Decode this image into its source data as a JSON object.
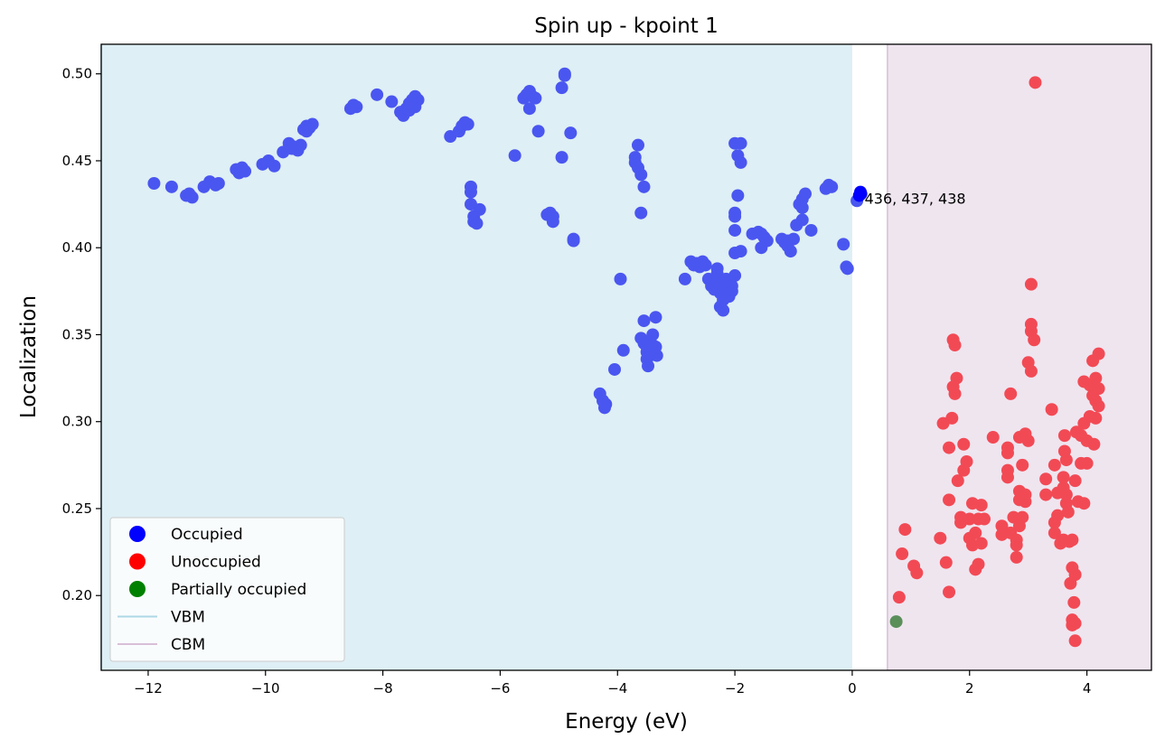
{
  "chart_data": {
    "type": "scatter",
    "title": "Spin up - kpoint 1",
    "xlabel": "Energy (eV)",
    "ylabel": "Localization",
    "xlim": [
      -12.8,
      5.1
    ],
    "ylim": [
      0.157,
      0.517
    ],
    "x_ticks": [
      -12,
      -10,
      -8,
      -6,
      -4,
      -2,
      0,
      2,
      4
    ],
    "x_tick_labels": [
      "−12",
      "−10",
      "−8",
      "−6",
      "−4",
      "−2",
      "0",
      "2",
      "4"
    ],
    "y_ticks": [
      0.2,
      0.25,
      0.3,
      0.35,
      0.4,
      0.45,
      0.5
    ],
    "y_tick_labels": [
      "0.20",
      "0.25",
      "0.30",
      "0.35",
      "0.40",
      "0.45",
      "0.50"
    ],
    "grid": false,
    "legend_position": "lower-left",
    "regions": [
      {
        "name": "VBM",
        "x0": -12.8,
        "x1": 0.0,
        "color": "#add8e6"
      },
      {
        "name": "CBM",
        "x0": 0.6,
        "x1": 5.1,
        "color": "#d8bfd8"
      }
    ],
    "legend": [
      {
        "label": "Occupied",
        "kind": "marker",
        "color": "#0000ff"
      },
      {
        "label": "Unoccupied",
        "kind": "marker",
        "color": "#ff0000"
      },
      {
        "label": "Partially occupied",
        "kind": "marker",
        "color": "#008000"
      },
      {
        "label": "VBM",
        "kind": "line",
        "color": "#add8e6"
      },
      {
        "label": "CBM",
        "kind": "line",
        "color": "#d8bfd8"
      }
    ],
    "annotation": {
      "text": "436, 437, 438",
      "x": 0.18,
      "y": 0.428
    },
    "series": [
      {
        "name": "Occupied",
        "color": "#4a56f0",
        "points": [
          [
            -11.9,
            0.437
          ],
          [
            -11.6,
            0.435
          ],
          [
            -11.35,
            0.43
          ],
          [
            -11.25,
            0.429
          ],
          [
            -11.3,
            0.431
          ],
          [
            -11.05,
            0.435
          ],
          [
            -10.95,
            0.438
          ],
          [
            -10.85,
            0.436
          ],
          [
            -10.8,
            0.437
          ],
          [
            -10.5,
            0.445
          ],
          [
            -10.45,
            0.443
          ],
          [
            -10.4,
            0.446
          ],
          [
            -10.35,
            0.444
          ],
          [
            -10.05,
            0.448
          ],
          [
            -9.95,
            0.45
          ],
          [
            -9.85,
            0.447
          ],
          [
            -9.7,
            0.455
          ],
          [
            -9.6,
            0.46
          ],
          [
            -9.55,
            0.457
          ],
          [
            -9.5,
            0.458
          ],
          [
            -9.45,
            0.456
          ],
          [
            -9.4,
            0.459
          ],
          [
            -9.35,
            0.468
          ],
          [
            -9.3,
            0.47
          ],
          [
            -9.25,
            0.469
          ],
          [
            -9.2,
            0.471
          ],
          [
            -9.3,
            0.467
          ],
          [
            -8.55,
            0.48
          ],
          [
            -8.5,
            0.482
          ],
          [
            -8.45,
            0.481
          ],
          [
            -8.1,
            0.488
          ],
          [
            -7.85,
            0.484
          ],
          [
            -7.7,
            0.478
          ],
          [
            -7.65,
            0.476
          ],
          [
            -7.6,
            0.48
          ],
          [
            -7.55,
            0.483
          ],
          [
            -7.5,
            0.485
          ],
          [
            -7.45,
            0.487
          ],
          [
            -7.4,
            0.485
          ],
          [
            -7.55,
            0.479
          ],
          [
            -7.45,
            0.481
          ],
          [
            -6.85,
            0.464
          ],
          [
            -6.7,
            0.467
          ],
          [
            -6.65,
            0.47
          ],
          [
            -6.6,
            0.472
          ],
          [
            -6.55,
            0.471
          ],
          [
            -6.5,
            0.435
          ],
          [
            -6.5,
            0.432
          ],
          [
            -6.5,
            0.425
          ],
          [
            -6.45,
            0.418
          ],
          [
            -6.45,
            0.415
          ],
          [
            -6.4,
            0.414
          ],
          [
            -6.35,
            0.422
          ],
          [
            -5.75,
            0.453
          ],
          [
            -5.6,
            0.486
          ],
          [
            -5.55,
            0.488
          ],
          [
            -5.5,
            0.49
          ],
          [
            -5.45,
            0.487
          ],
          [
            -5.4,
            0.486
          ],
          [
            -5.5,
            0.48
          ],
          [
            -5.35,
            0.467
          ],
          [
            -5.2,
            0.419
          ],
          [
            -5.15,
            0.42
          ],
          [
            -5.1,
            0.418
          ],
          [
            -5.1,
            0.415
          ],
          [
            -4.95,
            0.452
          ],
          [
            -4.95,
            0.492
          ],
          [
            -4.9,
            0.499
          ],
          [
            -4.9,
            0.5
          ],
          [
            -4.8,
            0.466
          ],
          [
            -4.75,
            0.405
          ],
          [
            -4.75,
            0.404
          ],
          [
            -4.3,
            0.316
          ],
          [
            -4.25,
            0.312
          ],
          [
            -4.22,
            0.308
          ],
          [
            -4.2,
            0.31
          ],
          [
            -4.05,
            0.33
          ],
          [
            -3.95,
            0.382
          ],
          [
            -3.9,
            0.341
          ],
          [
            -3.7,
            0.452
          ],
          [
            -3.7,
            0.449
          ],
          [
            -3.65,
            0.459
          ],
          [
            -3.65,
            0.446
          ],
          [
            -3.6,
            0.442
          ],
          [
            -3.6,
            0.42
          ],
          [
            -3.6,
            0.348
          ],
          [
            -3.55,
            0.435
          ],
          [
            -3.55,
            0.358
          ],
          [
            -3.55,
            0.345
          ],
          [
            -3.5,
            0.343
          ],
          [
            -3.5,
            0.34
          ],
          [
            -3.5,
            0.336
          ],
          [
            -3.48,
            0.332
          ],
          [
            -3.45,
            0.346
          ],
          [
            -3.45,
            0.338
          ],
          [
            -3.4,
            0.35
          ],
          [
            -3.4,
            0.344
          ],
          [
            -3.35,
            0.343
          ],
          [
            -3.35,
            0.36
          ],
          [
            -3.33,
            0.338
          ],
          [
            -2.85,
            0.382
          ],
          [
            -2.75,
            0.392
          ],
          [
            -2.7,
            0.39
          ],
          [
            -2.65,
            0.391
          ],
          [
            -2.6,
            0.389
          ],
          [
            -2.55,
            0.392
          ],
          [
            -2.5,
            0.39
          ],
          [
            -2.45,
            0.382
          ],
          [
            -2.4,
            0.378
          ],
          [
            -2.35,
            0.376
          ],
          [
            -2.3,
            0.388
          ],
          [
            -2.3,
            0.385
          ],
          [
            -2.25,
            0.38
          ],
          [
            -2.25,
            0.374
          ],
          [
            -2.2,
            0.377
          ],
          [
            -2.2,
            0.37
          ],
          [
            -2.25,
            0.366
          ],
          [
            -2.2,
            0.364
          ],
          [
            -2.15,
            0.382
          ],
          [
            -2.15,
            0.375
          ],
          [
            -2.1,
            0.38
          ],
          [
            -2.1,
            0.372
          ],
          [
            -2.05,
            0.378
          ],
          [
            -2.05,
            0.375
          ],
          [
            -2.0,
            0.384
          ],
          [
            -2.0,
            0.46
          ],
          [
            -1.95,
            0.453
          ],
          [
            -1.95,
            0.43
          ],
          [
            -2.0,
            0.42
          ],
          [
            -2.0,
            0.418
          ],
          [
            -2.0,
            0.41
          ],
          [
            -2.0,
            0.397
          ],
          [
            -1.9,
            0.398
          ],
          [
            -1.9,
            0.46
          ],
          [
            -1.9,
            0.449
          ],
          [
            -1.7,
            0.408
          ],
          [
            -1.6,
            0.409
          ],
          [
            -1.55,
            0.408
          ],
          [
            -1.5,
            0.406
          ],
          [
            -1.45,
            0.404
          ],
          [
            -1.55,
            0.4
          ],
          [
            -1.2,
            0.405
          ],
          [
            -1.15,
            0.403
          ],
          [
            -1.1,
            0.404
          ],
          [
            -1.1,
            0.401
          ],
          [
            -1.05,
            0.398
          ],
          [
            -1.0,
            0.405
          ],
          [
            -0.95,
            0.413
          ],
          [
            -0.9,
            0.425
          ],
          [
            -0.85,
            0.428
          ],
          [
            -0.85,
            0.423
          ],
          [
            -0.8,
            0.431
          ],
          [
            -0.85,
            0.416
          ],
          [
            -0.7,
            0.41
          ],
          [
            -0.45,
            0.434
          ],
          [
            -0.4,
            0.436
          ],
          [
            -0.35,
            0.435
          ],
          [
            -0.15,
            0.402
          ],
          [
            -0.1,
            0.389
          ],
          [
            -0.08,
            0.388
          ],
          [
            0.08,
            0.427
          ]
        ]
      },
      {
        "name": "Unoccupied",
        "color": "#f24a55",
        "points": [
          [
            0.8,
            0.199
          ],
          [
            0.85,
            0.224
          ],
          [
            0.9,
            0.238
          ],
          [
            1.05,
            0.217
          ],
          [
            1.1,
            0.213
          ],
          [
            1.5,
            0.233
          ],
          [
            1.55,
            0.299
          ],
          [
            1.6,
            0.219
          ],
          [
            1.65,
            0.202
          ],
          [
            1.65,
            0.285
          ],
          [
            1.65,
            0.255
          ],
          [
            1.7,
            0.302
          ],
          [
            1.72,
            0.347
          ],
          [
            1.75,
            0.344
          ],
          [
            1.72,
            0.32
          ],
          [
            1.75,
            0.316
          ],
          [
            1.78,
            0.325
          ],
          [
            1.8,
            0.266
          ],
          [
            1.85,
            0.245
          ],
          [
            1.85,
            0.242
          ],
          [
            1.9,
            0.287
          ],
          [
            1.9,
            0.272
          ],
          [
            1.95,
            0.277
          ],
          [
            2.0,
            0.244
          ],
          [
            2.0,
            0.233
          ],
          [
            2.05,
            0.253
          ],
          [
            2.05,
            0.229
          ],
          [
            2.1,
            0.215
          ],
          [
            2.1,
            0.236
          ],
          [
            2.15,
            0.218
          ],
          [
            2.15,
            0.244
          ],
          [
            2.2,
            0.23
          ],
          [
            2.2,
            0.252
          ],
          [
            2.25,
            0.244
          ],
          [
            2.4,
            0.291
          ],
          [
            2.55,
            0.24
          ],
          [
            2.55,
            0.235
          ],
          [
            2.65,
            0.282
          ],
          [
            2.65,
            0.285
          ],
          [
            2.65,
            0.272
          ],
          [
            2.65,
            0.268
          ],
          [
            2.7,
            0.316
          ],
          [
            2.7,
            0.236
          ],
          [
            2.75,
            0.245
          ],
          [
            2.8,
            0.229
          ],
          [
            2.8,
            0.232
          ],
          [
            2.8,
            0.222
          ],
          [
            2.85,
            0.291
          ],
          [
            2.85,
            0.255
          ],
          [
            2.85,
            0.26
          ],
          [
            2.85,
            0.24
          ],
          [
            2.9,
            0.275
          ],
          [
            2.9,
            0.245
          ],
          [
            2.95,
            0.293
          ],
          [
            2.95,
            0.258
          ],
          [
            2.95,
            0.254
          ],
          [
            3.0,
            0.334
          ],
          [
            3.0,
            0.289
          ],
          [
            3.05,
            0.356
          ],
          [
            3.05,
            0.352
          ],
          [
            3.05,
            0.379
          ],
          [
            3.05,
            0.329
          ],
          [
            3.1,
            0.347
          ],
          [
            3.12,
            0.495
          ],
          [
            3.3,
            0.267
          ],
          [
            3.3,
            0.258
          ],
          [
            3.4,
            0.307
          ],
          [
            3.45,
            0.275
          ],
          [
            3.45,
            0.236
          ],
          [
            3.45,
            0.242
          ],
          [
            3.5,
            0.246
          ],
          [
            3.5,
            0.259
          ],
          [
            3.55,
            0.23
          ],
          [
            3.6,
            0.232
          ],
          [
            3.6,
            0.262
          ],
          [
            3.6,
            0.268
          ],
          [
            3.62,
            0.283
          ],
          [
            3.62,
            0.292
          ],
          [
            3.65,
            0.278
          ],
          [
            3.65,
            0.253
          ],
          [
            3.65,
            0.258
          ],
          [
            3.68,
            0.248
          ],
          [
            3.7,
            0.231
          ],
          [
            3.72,
            0.207
          ],
          [
            3.75,
            0.216
          ],
          [
            3.75,
            0.232
          ],
          [
            3.75,
            0.186
          ],
          [
            3.75,
            0.183
          ],
          [
            3.78,
            0.196
          ],
          [
            3.8,
            0.212
          ],
          [
            3.8,
            0.174
          ],
          [
            3.8,
            0.184
          ],
          [
            3.8,
            0.266
          ],
          [
            3.82,
            0.294
          ],
          [
            3.85,
            0.254
          ],
          [
            3.9,
            0.292
          ],
          [
            3.9,
            0.276
          ],
          [
            3.95,
            0.323
          ],
          [
            3.95,
            0.299
          ],
          [
            3.95,
            0.253
          ],
          [
            4.0,
            0.289
          ],
          [
            4.0,
            0.276
          ],
          [
            4.05,
            0.303
          ],
          [
            4.05,
            0.321
          ],
          [
            4.1,
            0.335
          ],
          [
            4.1,
            0.315
          ],
          [
            4.12,
            0.287
          ],
          [
            4.15,
            0.325
          ],
          [
            4.15,
            0.302
          ],
          [
            4.15,
            0.312
          ],
          [
            4.2,
            0.339
          ],
          [
            4.2,
            0.319
          ],
          [
            4.2,
            0.309
          ]
        ]
      },
      {
        "name": "Partially occupied",
        "color": "#5a8f5a",
        "points": [
          [
            0.75,
            0.185
          ]
        ]
      },
      {
        "name": "Highlighted 436, 437, 438",
        "color": "#0000ff",
        "points": [
          [
            0.12,
            0.43
          ],
          [
            0.14,
            0.432
          ],
          [
            0.15,
            0.431
          ]
        ]
      }
    ]
  }
}
